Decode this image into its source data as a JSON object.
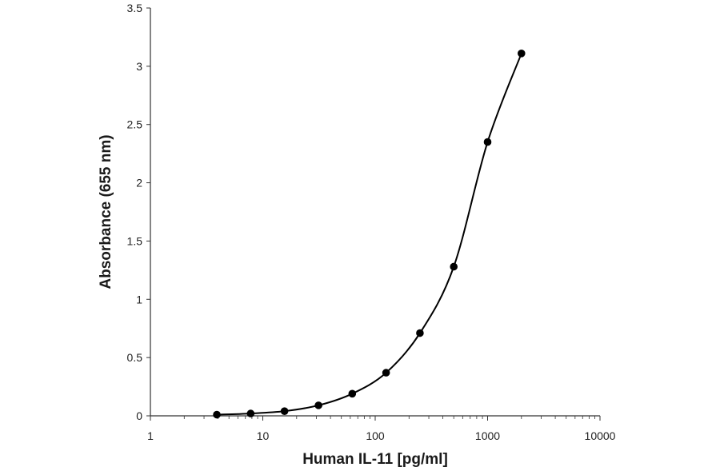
{
  "chart_data": {
    "type": "scatter",
    "title": "",
    "xlabel": "Human IL-11 [pg/ml]",
    "ylabel": "Absorbance (655 nm)",
    "x_scale": "log",
    "xlim": [
      1,
      10000
    ],
    "ylim": [
      0,
      3.5
    ],
    "x_tick_labels": [
      "1",
      "10",
      "100",
      "1000",
      "10000"
    ],
    "y_tick_labels": [
      "0",
      "0.5",
      "1",
      "1.5",
      "2",
      "2.5",
      "3",
      "3.5"
    ],
    "grid": false,
    "legend": "none",
    "series": [
      {
        "x": [
          3.9,
          7.8,
          15.6,
          31.3,
          62.5,
          125,
          250,
          500,
          1000,
          2000
        ],
        "y": [
          0.01,
          0.02,
          0.04,
          0.09,
          0.19,
          0.37,
          0.71,
          1.28,
          2.35,
          3.11
        ],
        "marker": "filled-circle",
        "line": "smooth",
        "color": "#000000"
      }
    ]
  }
}
